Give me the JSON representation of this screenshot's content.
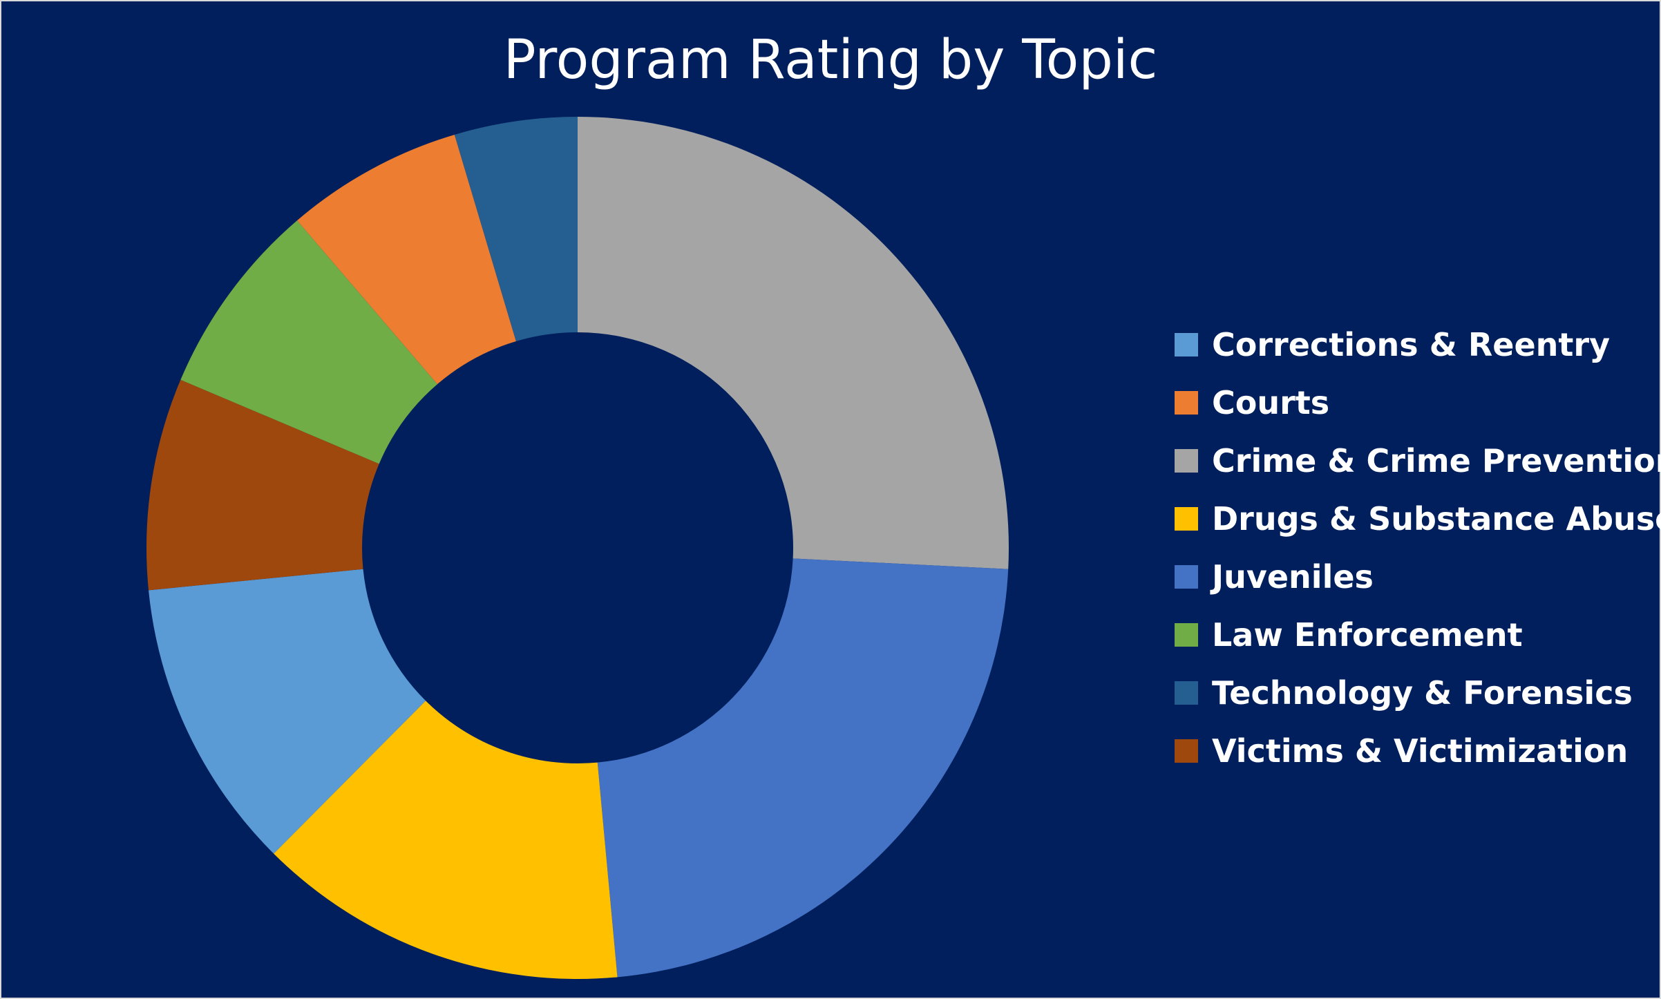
{
  "chart_data": {
    "type": "pie",
    "donut": true,
    "title": "Program Rating by Topic",
    "start_angle_deg": 0,
    "direction": "clockwise",
    "legend_position": "right",
    "categories": [
      "Corrections & Reentry",
      "Courts",
      "Crime & Crime Prevention",
      "Drugs & Substance Abuse",
      "Juveniles",
      "Law Enforcement",
      "Technology & Forensics",
      "Victims & Victimization"
    ],
    "colors": [
      "#5b9bd5",
      "#ed7d31",
      "#a5a5a5",
      "#ffc000",
      "#4472c4",
      "#70ad47",
      "#255e91",
      "#9e480e"
    ],
    "plot_order": [
      "Crime & Crime Prevention",
      "Juveniles",
      "Drugs & Substance Abuse",
      "Corrections & Reentry",
      "Victims & Victimization",
      "Law Enforcement",
      "Courts",
      "Technology & Forensics"
    ],
    "values": {
      "Crime & Crime Prevention": 26.3,
      "Juveniles": 23.2,
      "Drugs & Substance Abuse": 14.2,
      "Corrections & Reentry": 11.2,
      "Victims & Victimization": 8.1,
      "Law Enforcement": 7.5,
      "Courts": 6.8,
      "Technology & Forensics": 4.7
    }
  }
}
